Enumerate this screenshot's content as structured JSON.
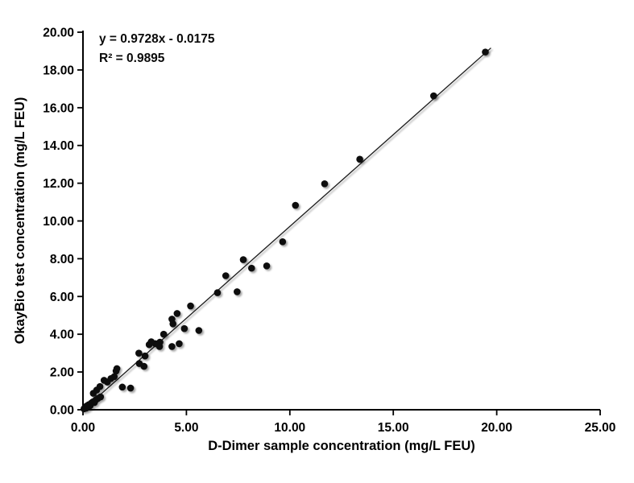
{
  "figure": {
    "background": "#ffffff",
    "marker_color": "#0b0b0b",
    "axis_color": "#000000"
  },
  "chart_data": {
    "type": "scatter",
    "title": "",
    "xlabel": "D-Dimer sample concentration (mg/L FEU)",
    "ylabel": "OkayBio test concentration (mg/L FEU)",
    "equation": "y = 0.9728x - 0.0175",
    "r_squared": "R² = 0.9895",
    "xlim": [
      0,
      25
    ],
    "ylim": [
      0,
      20
    ],
    "xticks": [
      0,
      5,
      10,
      15,
      20,
      25
    ],
    "yticks": [
      0,
      2,
      4,
      6,
      8,
      10,
      12,
      14,
      16,
      18,
      20
    ],
    "tick_decimals": 2,
    "grid": false,
    "legend": "none",
    "trendline": {
      "slope": 0.9728,
      "intercept": -0.0175,
      "x_start": 0.28,
      "x_end": 19.72
    },
    "points": [
      [
        0.05,
        0.05
      ],
      [
        0.1,
        0.12
      ],
      [
        0.15,
        0.08
      ],
      [
        0.18,
        0.2
      ],
      [
        0.25,
        0.15
      ],
      [
        0.28,
        0.27
      ],
      [
        0.35,
        0.22
      ],
      [
        0.4,
        0.35
      ],
      [
        0.48,
        0.42
      ],
      [
        0.55,
        0.38
      ],
      [
        0.62,
        0.52
      ],
      [
        0.72,
        0.6
      ],
      [
        0.85,
        0.68
      ],
      [
        0.5,
        0.87
      ],
      [
        0.66,
        1.04
      ],
      [
        0.82,
        1.23
      ],
      [
        1.02,
        1.56
      ],
      [
        1.18,
        1.47
      ],
      [
        1.35,
        1.65
      ],
      [
        1.51,
        1.75
      ],
      [
        1.6,
        2.05
      ],
      [
        1.64,
        2.18
      ],
      [
        1.9,
        1.2
      ],
      [
        2.3,
        1.15
      ],
      [
        2.72,
        2.45
      ],
      [
        2.95,
        2.3
      ],
      [
        2.7,
        3.0
      ],
      [
        3.0,
        2.85
      ],
      [
        3.2,
        3.45
      ],
      [
        3.3,
        3.6
      ],
      [
        3.5,
        3.5
      ],
      [
        3.72,
        3.58
      ],
      [
        3.7,
        3.35
      ],
      [
        3.9,
        4.0
      ],
      [
        4.3,
        3.35
      ],
      [
        4.65,
        3.5
      ],
      [
        4.35,
        4.55
      ],
      [
        4.3,
        4.8
      ],
      [
        4.55,
        5.1
      ],
      [
        5.2,
        5.5
      ],
      [
        4.9,
        4.3
      ],
      [
        5.6,
        4.2
      ],
      [
        6.5,
        6.2
      ],
      [
        6.9,
        7.1
      ],
      [
        7.45,
        6.25
      ],
      [
        7.75,
        7.95
      ],
      [
        8.15,
        7.5
      ],
      [
        8.88,
        7.62
      ],
      [
        9.65,
        8.9
      ],
      [
        10.27,
        10.83
      ],
      [
        11.68,
        11.97
      ],
      [
        13.38,
        13.27
      ],
      [
        16.95,
        16.63
      ],
      [
        19.45,
        18.95
      ]
    ]
  }
}
